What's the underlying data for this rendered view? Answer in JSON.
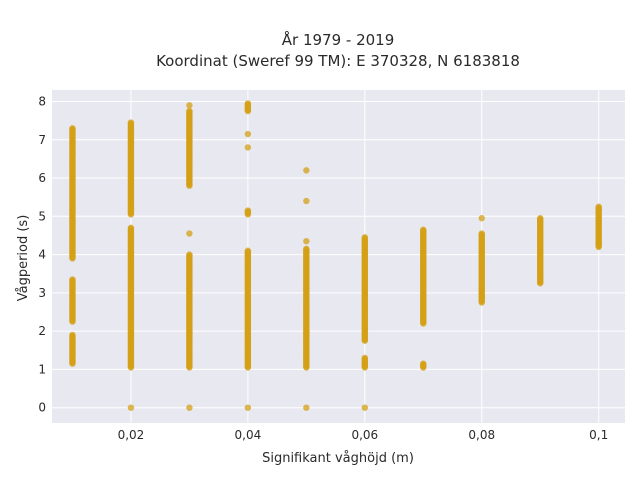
{
  "chart_data": {
    "type": "scatter",
    "title_line1": "År 1979 - 2019",
    "title_line2": "Koordinat (Sweref 99 TM): E 370328, N 6183818",
    "xlabel": "Signifikant våghöjd (m)",
    "ylabel": "Vågperiod (s)",
    "xlim": [
      0.0065,
      0.1045
    ],
    "ylim": [
      -0.4,
      8.3
    ],
    "x_ticks": [
      0.02,
      0.04,
      0.06,
      0.08,
      0.1
    ],
    "x_tick_labels": [
      "0,02",
      "0,04",
      "0,06",
      "0,08",
      "0,1"
    ],
    "y_ticks": [
      0,
      1,
      2,
      3,
      4,
      5,
      6,
      7,
      8
    ],
    "y_tick_labels": [
      "0",
      "1",
      "2",
      "3",
      "4",
      "5",
      "6",
      "7",
      "8"
    ],
    "grid": true,
    "marker_color": "#d4a017",
    "plot_background": "#e8e8f0",
    "series": [
      {
        "points": [
          {
            "x": 0.01,
            "y": [
              1.15,
              1.9
            ]
          },
          {
            "x": 0.01,
            "y": [
              2.25,
              3.35
            ]
          },
          {
            "x": 0.01,
            "y": [
              3.9,
              7.3
            ]
          },
          {
            "x": 0.02,
            "y": [
              0,
              0
            ]
          },
          {
            "x": 0.02,
            "y": [
              1.05,
              4.7
            ]
          },
          {
            "x": 0.02,
            "y": [
              5.05,
              7.45
            ]
          },
          {
            "x": 0.03,
            "y": [
              0,
              0
            ]
          },
          {
            "x": 0.03,
            "y": [
              1.05,
              4.0
            ]
          },
          {
            "x": 0.03,
            "y": [
              4.55,
              4.55
            ]
          },
          {
            "x": 0.03,
            "y": [
              5.8,
              7.75
            ]
          },
          {
            "x": 0.03,
            "y": [
              7.9,
              7.9
            ]
          },
          {
            "x": 0.04,
            "y": [
              0,
              0
            ]
          },
          {
            "x": 0.04,
            "y": [
              1.05,
              4.1
            ]
          },
          {
            "x": 0.04,
            "y": [
              5.05,
              5.15
            ]
          },
          {
            "x": 0.04,
            "y": [
              6.8,
              6.8
            ]
          },
          {
            "x": 0.04,
            "y": [
              7.15,
              7.15
            ]
          },
          {
            "x": 0.04,
            "y": [
              7.75,
              7.95
            ]
          },
          {
            "x": 0.05,
            "y": [
              0,
              0
            ]
          },
          {
            "x": 0.05,
            "y": [
              1.05,
              4.15
            ]
          },
          {
            "x": 0.05,
            "y": [
              4.35,
              4.35
            ]
          },
          {
            "x": 0.05,
            "y": [
              5.4,
              5.4
            ]
          },
          {
            "x": 0.05,
            "y": [
              6.2,
              6.2
            ]
          },
          {
            "x": 0.06,
            "y": [
              0,
              0
            ]
          },
          {
            "x": 0.06,
            "y": [
              1.05,
              1.3
            ]
          },
          {
            "x": 0.06,
            "y": [
              1.75,
              4.45
            ]
          },
          {
            "x": 0.07,
            "y": [
              1.05,
              1.15
            ]
          },
          {
            "x": 0.07,
            "y": [
              2.2,
              4.65
            ]
          },
          {
            "x": 0.08,
            "y": [
              2.75,
              4.55
            ]
          },
          {
            "x": 0.08,
            "y": [
              4.95,
              4.95
            ]
          },
          {
            "x": 0.09,
            "y": [
              3.25,
              4.95
            ]
          },
          {
            "x": 0.1,
            "y": [
              4.2,
              5.25
            ]
          }
        ]
      }
    ]
  }
}
